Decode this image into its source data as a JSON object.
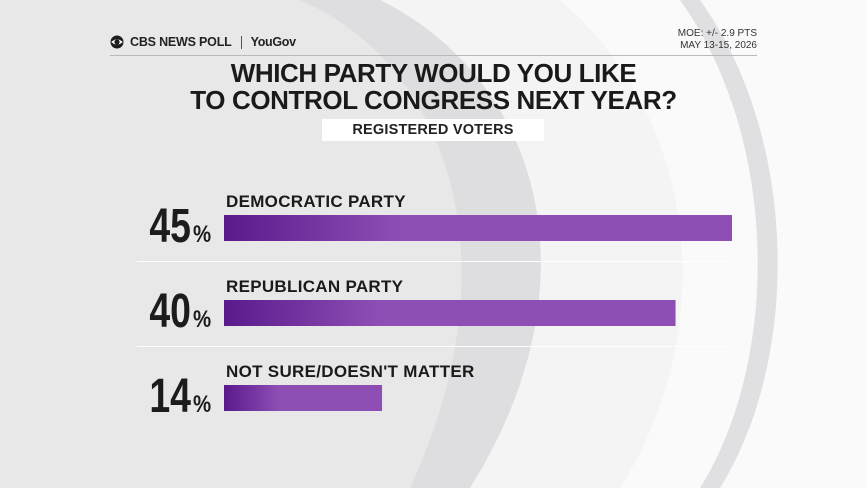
{
  "header": {
    "brand": "CBS NEWS POLL",
    "partner": "YouGov",
    "moe": "MOE: +/- 2.9 PTS",
    "dates": "MAY 13-15, 2026"
  },
  "title_lines": [
    "WHICH PARTY WOULD YOU LIKE",
    "TO CONTROL CONGRESS NEXT YEAR?"
  ],
  "subtitle": "REGISTERED VOTERS",
  "chart_data": {
    "type": "bar",
    "orientation": "horizontal",
    "title": "WHICH PARTY WOULD YOU LIKE TO CONTROL CONGRESS NEXT YEAR?",
    "subtitle": "REGISTERED VOTERS",
    "categories": [
      "DEMOCRATIC PARTY",
      "REPUBLICAN PARTY",
      "NOT SURE/DOESN'T MATTER"
    ],
    "values": [
      45,
      40,
      14
    ],
    "value_labels": [
      "45",
      "40",
      "14"
    ],
    "unit": "%",
    "xlim": [
      0,
      45
    ],
    "grid": false,
    "legend": "none",
    "bar_color_start": "#5a1a8c",
    "bar_color_end": "#8e4fb5"
  }
}
